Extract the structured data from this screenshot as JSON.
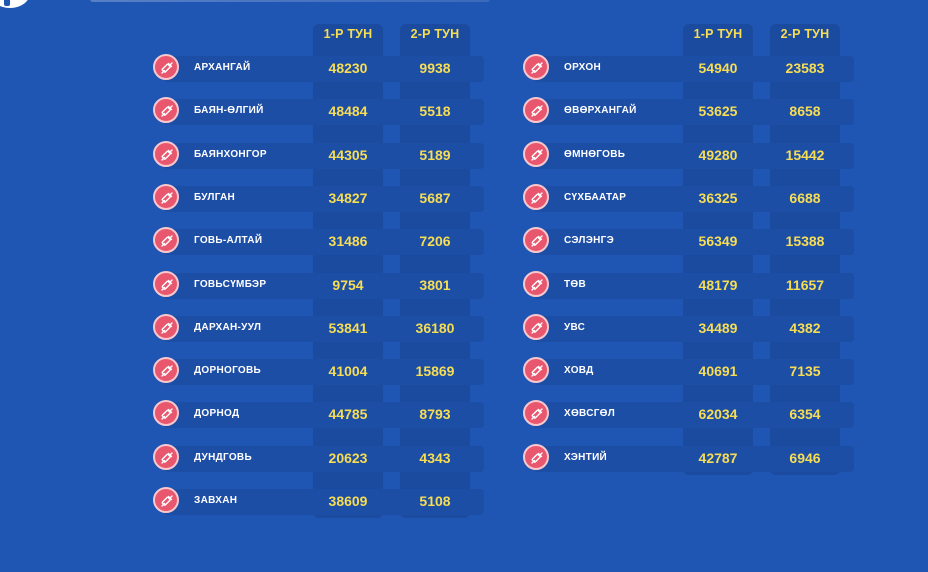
{
  "headers": {
    "dose1": "1-Р ТУН",
    "dose2": "2-Р ТУН"
  },
  "icon": "syringe-icon",
  "colors": {
    "background": "#1f55b3",
    "value": "#f6dd54",
    "icon_bg": "#e8576d"
  },
  "left": [
    {
      "name": "АРХАНГАЙ",
      "dose1": "48230",
      "dose2": "9938"
    },
    {
      "name": "БАЯН-ӨЛГИЙ",
      "dose1": "48484",
      "dose2": "5518"
    },
    {
      "name": "БАЯНХОНГОР",
      "dose1": "44305",
      "dose2": "5189"
    },
    {
      "name": "БУЛГАН",
      "dose1": "34827",
      "dose2": "5687"
    },
    {
      "name": "ГОВЬ-АЛТАЙ",
      "dose1": "31486",
      "dose2": "7206"
    },
    {
      "name": "ГОВЬСҮМБЭР",
      "dose1": "9754",
      "dose2": "3801"
    },
    {
      "name": "ДАРХАН-УУЛ",
      "dose1": "53841",
      "dose2": "36180"
    },
    {
      "name": "ДОРНОГОВЬ",
      "dose1": "41004",
      "dose2": "15869"
    },
    {
      "name": "ДОРНОД",
      "dose1": "44785",
      "dose2": "8793"
    },
    {
      "name": "ДУНДГОВЬ",
      "dose1": "20623",
      "dose2": "4343"
    },
    {
      "name": "ЗАВХАН",
      "dose1": "38609",
      "dose2": "5108"
    }
  ],
  "right": [
    {
      "name": "ОРХОН",
      "dose1": "54940",
      "dose2": "23583"
    },
    {
      "name": "ӨВӨРХАНГАЙ",
      "dose1": "53625",
      "dose2": "8658"
    },
    {
      "name": "ӨМНӨГОВЬ",
      "dose1": "49280",
      "dose2": "15442"
    },
    {
      "name": "СҮХБААТАР",
      "dose1": "36325",
      "dose2": "6688"
    },
    {
      "name": "СЭЛЭНГЭ",
      "dose1": "56349",
      "dose2": "15388"
    },
    {
      "name": "ТӨВ",
      "dose1": "48179",
      "dose2": "11657"
    },
    {
      "name": "УВС",
      "dose1": "34489",
      "dose2": "4382"
    },
    {
      "name": "ХОВД",
      "dose1": "40691",
      "dose2": "7135"
    },
    {
      "name": "ХӨВСГӨЛ",
      "dose1": "62034",
      "dose2": "6354"
    },
    {
      "name": "ХЭНТИЙ",
      "dose1": "42787",
      "dose2": "6946"
    }
  ]
}
